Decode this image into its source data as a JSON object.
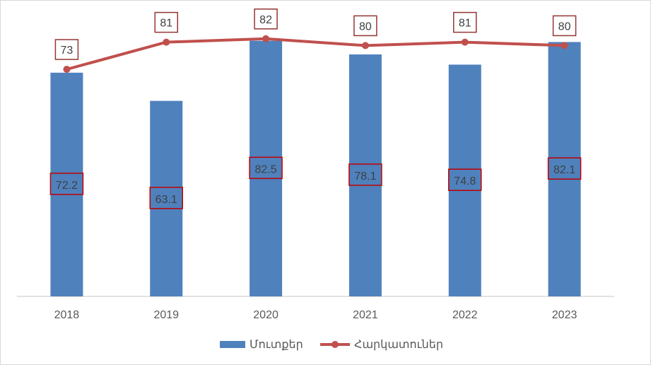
{
  "chart_data": {
    "type": "bar",
    "categories": [
      "2018",
      "2019",
      "2020",
      "2021",
      "2022",
      "2023"
    ],
    "series": [
      {
        "name": "Մուտքեր",
        "type": "bar",
        "values": [
          72.2,
          63.1,
          82.5,
          78.1,
          74.8,
          82.1
        ]
      },
      {
        "name": "Հարկատուներ",
        "type": "line",
        "values": [
          73,
          81,
          82,
          80,
          81,
          80
        ]
      }
    ],
    "ylim": [
      0,
      95
    ],
    "grid": false,
    "legend": "bottom",
    "colors": {
      "bars": "#4f81bd",
      "line": "#c0504d",
      "label_border": "#c00000",
      "line_label_border": "#943634"
    }
  }
}
